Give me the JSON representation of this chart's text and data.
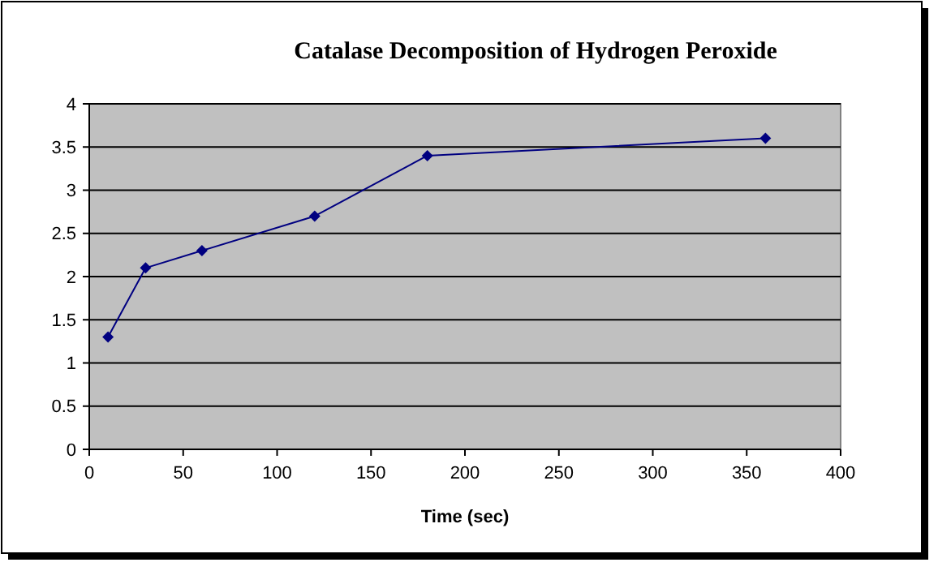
{
  "chart_data": {
    "type": "line",
    "title": "Catalase Decomposition of Hydrogen Peroxide",
    "xlabel": "Time (sec)",
    "x": [
      10,
      30,
      60,
      120,
      180,
      360
    ],
    "series": [
      {
        "color": "#000080",
        "values": [
          1.3,
          2.1,
          2.3,
          2.7,
          3.4,
          3.6
        ]
      }
    ],
    "xlim": [
      0,
      400
    ],
    "xticks": [
      0,
      50,
      100,
      150,
      200,
      250,
      300,
      350,
      400
    ],
    "ylim": [
      0,
      4
    ],
    "yticks": [
      0,
      0.5,
      1,
      1.5,
      2,
      2.5,
      3,
      3.5,
      4
    ],
    "grid": "y",
    "marker": "diamond",
    "line_style": "solid"
  }
}
